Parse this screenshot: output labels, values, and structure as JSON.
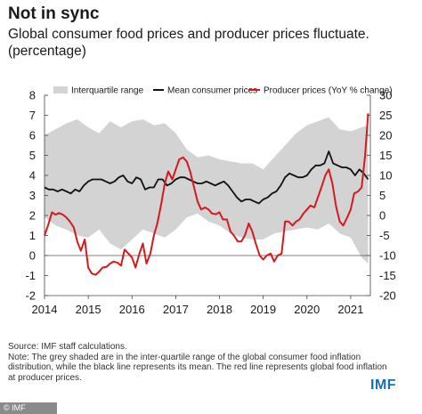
{
  "header": {
    "title": "Not in sync",
    "subtitle": "Global consumer food prices and producer prices fluctuate. (percentage)"
  },
  "footer": {
    "source": "Source: IMF staff calculations.",
    "note": "Note: The grey shaded are in the inter-quartile range of the global consumer food inflation distribution, while the black line represents its mean. The red line represents global food inflation at producer prices.",
    "brand": "IMF",
    "credit": "© IMF"
  },
  "colors": {
    "band": "#d3d3d3",
    "mean": "#111111",
    "producer": "#d7191c"
  },
  "chart_data": {
    "type": "line",
    "title": "",
    "xlabel": "",
    "ylabel": "",
    "x_ticks": [
      "2014",
      "2015",
      "2016",
      "2017",
      "2018",
      "2019",
      "2020",
      "2021"
    ],
    "xlim": [
      2014,
      2021.45
    ],
    "y_left_lim": [
      -2,
      8
    ],
    "y_left_ticks": [
      "-2",
      "-1",
      "0",
      "1",
      "2",
      "3",
      "4",
      "5",
      "6",
      "7",
      "8"
    ],
    "y_right_lim": [
      -20,
      30
    ],
    "y_right_ticks": [
      "-20",
      "-15",
      "-10",
      "-5",
      "0",
      "5",
      "10",
      "15",
      "20",
      "25",
      "30"
    ],
    "grid": false,
    "legend_position": "top",
    "series": [
      {
        "name": "Interquartile range",
        "kind": "band",
        "axis": "left",
        "x": [
          2014.0,
          2014.25,
          2014.5,
          2014.75,
          2015.0,
          2015.25,
          2015.5,
          2015.75,
          2016.0,
          2016.25,
          2016.5,
          2016.75,
          2017.0,
          2017.25,
          2017.5,
          2017.75,
          2018.0,
          2018.25,
          2018.5,
          2018.75,
          2019.0,
          2019.25,
          2019.5,
          2019.75,
          2020.0,
          2020.25,
          2020.5,
          2020.75,
          2021.0,
          2021.25,
          2021.4
        ],
        "upper": [
          6.0,
          6.3,
          6.6,
          6.8,
          6.4,
          6.1,
          6.7,
          6.4,
          6.7,
          6.8,
          6.5,
          6.6,
          6.1,
          5.3,
          4.9,
          5.0,
          4.8,
          4.7,
          4.6,
          4.6,
          4.3,
          4.9,
          5.5,
          6.1,
          6.5,
          6.7,
          6.9,
          6.3,
          6.2,
          6.4,
          6.5
        ],
        "lower": [
          1.9,
          1.5,
          1.3,
          1.0,
          0.9,
          1.3,
          0.6,
          0.3,
          0.8,
          1.3,
          1.1,
          0.9,
          1.3,
          1.9,
          2.1,
          1.7,
          1.5,
          1.1,
          0.9,
          0.8,
          0.8,
          1.1,
          1.2,
          1.3,
          1.4,
          1.3,
          1.6,
          1.1,
          0.9,
          -0.1,
          -0.4
        ]
      },
      {
        "name": "Mean consumer prices",
        "axis": "left",
        "x": [
          2014.0,
          2014.1,
          2014.2,
          2014.3,
          2014.4,
          2014.5,
          2014.6,
          2014.7,
          2014.8,
          2014.9,
          2015.0,
          2015.1,
          2015.2,
          2015.3,
          2015.4,
          2015.5,
          2015.6,
          2015.7,
          2015.8,
          2015.9,
          2016.0,
          2016.1,
          2016.2,
          2016.3,
          2016.4,
          2016.5,
          2016.6,
          2016.7,
          2016.8,
          2016.9,
          2017.0,
          2017.1,
          2017.2,
          2017.3,
          2017.4,
          2017.5,
          2017.6,
          2017.7,
          2017.8,
          2017.9,
          2018.0,
          2018.1,
          2018.2,
          2018.3,
          2018.4,
          2018.5,
          2018.6,
          2018.7,
          2018.8,
          2018.9,
          2019.0,
          2019.1,
          2019.2,
          2019.3,
          2019.4,
          2019.5,
          2019.6,
          2019.7,
          2019.8,
          2019.9,
          2020.0,
          2020.1,
          2020.2,
          2020.3,
          2020.4,
          2020.5,
          2020.6,
          2020.7,
          2020.8,
          2020.9,
          2021.0,
          2021.1,
          2021.2,
          2021.3,
          2021.4
        ],
        "values": [
          3.4,
          3.3,
          3.3,
          3.2,
          3.3,
          3.2,
          3.1,
          3.3,
          3.2,
          3.5,
          3.7,
          3.8,
          3.8,
          3.8,
          3.7,
          3.6,
          3.7,
          3.9,
          4.0,
          3.7,
          3.6,
          3.9,
          3.8,
          3.3,
          3.4,
          3.4,
          3.8,
          3.8,
          3.5,
          3.6,
          3.8,
          3.9,
          3.9,
          3.8,
          3.7,
          3.6,
          3.6,
          3.7,
          3.6,
          3.5,
          3.6,
          3.7,
          3.5,
          3.2,
          2.9,
          2.7,
          2.8,
          2.8,
          2.7,
          2.6,
          2.8,
          2.9,
          3.1,
          3.2,
          3.5,
          3.9,
          4.1,
          4.0,
          3.9,
          3.9,
          4.0,
          4.3,
          4.5,
          4.5,
          4.6,
          5.2,
          4.6,
          4.5,
          4.4,
          4.4,
          4.3,
          4.0,
          4.3,
          4.1,
          3.8
        ]
      },
      {
        "name": "Producer prices (YoY % change)",
        "axis": "right",
        "x": [
          2014.0,
          2014.08,
          2014.17,
          2014.25,
          2014.33,
          2014.42,
          2014.5,
          2014.58,
          2014.67,
          2014.75,
          2014.83,
          2014.92,
          2015.0,
          2015.08,
          2015.17,
          2015.25,
          2015.33,
          2015.42,
          2015.5,
          2015.58,
          2015.67,
          2015.75,
          2015.83,
          2015.92,
          2016.0,
          2016.08,
          2016.17,
          2016.25,
          2016.33,
          2016.42,
          2016.5,
          2016.58,
          2016.67,
          2016.75,
          2016.83,
          2016.92,
          2017.0,
          2017.08,
          2017.17,
          2017.25,
          2017.33,
          2017.42,
          2017.5,
          2017.58,
          2017.67,
          2017.75,
          2017.83,
          2017.92,
          2018.0,
          2018.08,
          2018.17,
          2018.25,
          2018.33,
          2018.42,
          2018.5,
          2018.58,
          2018.67,
          2018.75,
          2018.83,
          2018.92,
          2019.0,
          2019.08,
          2019.17,
          2019.25,
          2019.33,
          2019.42,
          2019.5,
          2019.58,
          2019.67,
          2019.75,
          2019.83,
          2019.92,
          2020.0,
          2020.08,
          2020.17,
          2020.25,
          2020.33,
          2020.42,
          2020.5,
          2020.58,
          2020.67,
          2020.75,
          2020.83,
          2020.92,
          2021.0,
          2021.08,
          2021.17,
          2021.25,
          2021.33,
          2021.4
        ],
        "values": [
          -5.0,
          -2.5,
          0.8,
          0.2,
          0.6,
          0.2,
          -0.5,
          -1.5,
          -3.0,
          -6.5,
          -8.8,
          -6.0,
          -13.0,
          -14.5,
          -14.8,
          -14.0,
          -13.0,
          -12.8,
          -12.0,
          -11.5,
          -11.8,
          -12.5,
          -8.5,
          -9.5,
          -10.5,
          -13.0,
          -9.5,
          -7.0,
          -12.0,
          -9.5,
          -5.0,
          -2.0,
          3.0,
          8.0,
          11.0,
          9.0,
          11.5,
          14.0,
          14.5,
          13.5,
          11.0,
          7.0,
          3.5,
          1.5,
          2.0,
          1.5,
          0.5,
          0.3,
          0.8,
          -1.0,
          -1.0,
          -4.0,
          -5.0,
          -6.5,
          -6.5,
          -5.0,
          -2.0,
          -4.0,
          -7.0,
          -10.0,
          -11.0,
          -10.0,
          -9.5,
          -11.5,
          -10.0,
          -9.5,
          -1.5,
          -1.5,
          -2.5,
          -1.5,
          -1.0,
          0.5,
          1.5,
          2.5,
          2.0,
          4.5,
          7.0,
          10.0,
          11.5,
          8.0,
          2.0,
          -1.5,
          -2.5,
          -0.5,
          1.5,
          5.5,
          6.0,
          7.0,
          15.0,
          25.5
        ]
      }
    ]
  }
}
